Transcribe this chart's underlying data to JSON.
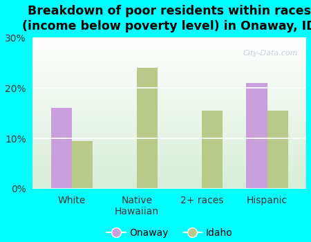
{
  "title": "Breakdown of poor residents within races\n(income below poverty level) in Onaway, ID",
  "categories": [
    "White",
    "Native\nHawaiian",
    "2+ races",
    "Hispanic"
  ],
  "onaway_values": [
    16.0,
    0,
    0,
    21.0
  ],
  "idaho_values": [
    9.5,
    24.0,
    15.5,
    15.5
  ],
  "onaway_color": "#c9a0dc",
  "idaho_color": "#b8c98a",
  "background_color": "#00ffff",
  "plot_bg_top": "#e8f5e8",
  "plot_bg_bottom": "#d0e8d0",
  "ylim": [
    0,
    30
  ],
  "yticks": [
    0,
    10,
    20,
    30
  ],
  "ytick_labels": [
    "0%",
    "10%",
    "20%",
    "30%"
  ],
  "bar_width": 0.32,
  "legend_onaway": "Onaway",
  "legend_idaho": "Idaho",
  "title_fontsize": 12.5,
  "tick_fontsize": 10,
  "legend_fontsize": 10,
  "watermark": "City-Data.com",
  "watermark_color": "#b8c8d8"
}
